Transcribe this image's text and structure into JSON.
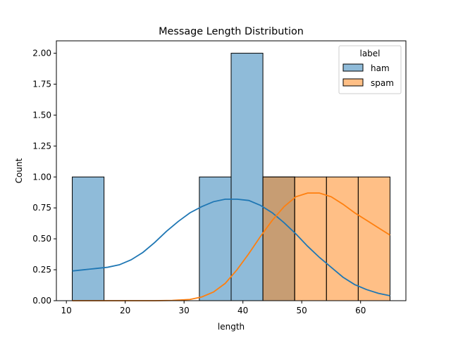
{
  "chart_data": {
    "type": "histogram",
    "title": "Message Length Distribution",
    "xlabel": "length",
    "ylabel": "Count",
    "xlim": [
      8.3,
      67.7
    ],
    "ylim": [
      0,
      2.1
    ],
    "x_ticks": [
      10,
      20,
      30,
      40,
      50,
      60
    ],
    "y_ticks": [
      0.0,
      0.25,
      0.5,
      0.75,
      1.0,
      1.25,
      1.5,
      1.75,
      2.0
    ],
    "y_tick_labels": [
      "0.00",
      "0.25",
      "0.50",
      "0.75",
      "1.00",
      "1.25",
      "1.50",
      "1.75",
      "2.00"
    ],
    "grid": false,
    "legend": {
      "title": "label",
      "placement": "top-right",
      "entries": [
        "ham",
        "spam"
      ]
    },
    "bin_edges": [
      11.0,
      16.4,
      21.8,
      27.2,
      32.6,
      38.0,
      43.4,
      48.8,
      54.2,
      59.6,
      65.0
    ],
    "series": [
      {
        "name": "ham",
        "color": "#1f77b4",
        "counts": [
          1,
          0,
          0,
          0,
          1,
          2,
          1,
          0,
          0,
          0
        ],
        "kde": {
          "x": [
            11,
            13,
            15,
            17,
            19,
            21,
            23,
            25,
            27,
            29,
            31,
            33,
            35,
            37,
            39,
            41,
            43,
            45,
            47,
            49,
            51,
            53,
            55,
            57,
            59,
            61,
            63,
            65
          ],
          "y": [
            0.24,
            0.25,
            0.26,
            0.27,
            0.29,
            0.33,
            0.39,
            0.47,
            0.56,
            0.64,
            0.71,
            0.76,
            0.8,
            0.82,
            0.82,
            0.81,
            0.77,
            0.71,
            0.63,
            0.54,
            0.44,
            0.35,
            0.27,
            0.19,
            0.13,
            0.09,
            0.06,
            0.04
          ]
        }
      },
      {
        "name": "spam",
        "color": "#ff7f0e",
        "counts": [
          0,
          0,
          0,
          0,
          0,
          0,
          1,
          1,
          1,
          1
        ],
        "kde": {
          "x": [
            11,
            20,
            25,
            28,
            31,
            33,
            35,
            37,
            39,
            41,
            43,
            45,
            47,
            49,
            51,
            53,
            55,
            57,
            59,
            61,
            63,
            65
          ],
          "y": [
            0.0,
            0.0,
            0.0,
            0.002,
            0.01,
            0.03,
            0.07,
            0.14,
            0.25,
            0.38,
            0.52,
            0.65,
            0.76,
            0.84,
            0.87,
            0.87,
            0.84,
            0.78,
            0.71,
            0.65,
            0.59,
            0.53
          ]
        }
      }
    ]
  }
}
